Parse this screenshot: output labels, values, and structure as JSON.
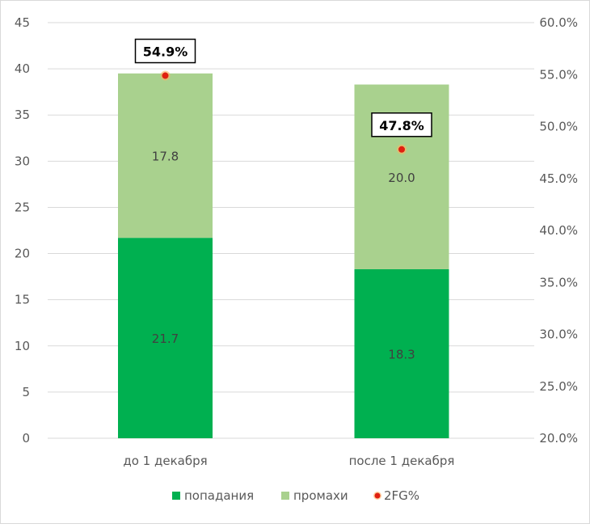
{
  "chart_data": {
    "type": "bar",
    "stacked": true,
    "categories": [
      "до 1 декабря",
      "после 1 декабря"
    ],
    "series": [
      {
        "name": "попадания",
        "values": [
          21.7,
          18.3
        ],
        "color": "#00b050",
        "axis": "left"
      },
      {
        "name": "промахи",
        "values": [
          17.8,
          20.0
        ],
        "color": "#a9d18e",
        "axis": "left"
      },
      {
        "name": "2FG%",
        "type": "scatter",
        "values": [
          54.9,
          47.8
        ],
        "labels": [
          "54.9%",
          "47.8%"
        ],
        "color": "#e02010",
        "axis": "right"
      }
    ],
    "segment_labels": [
      [
        "21.7",
        "17.8"
      ],
      [
        "18.3",
        "20.0"
      ]
    ],
    "ylim": [
      0,
      45
    ],
    "yticks": [
      "0",
      "5",
      "10",
      "15",
      "20",
      "25",
      "30",
      "35",
      "40",
      "45"
    ],
    "y2lim": [
      20,
      60
    ],
    "y2ticks": [
      "20.0%",
      "25.0%",
      "30.0%",
      "35.0%",
      "40.0%",
      "45.0%",
      "50.0%",
      "55.0%",
      "60.0%"
    ],
    "grid": true,
    "legend": "bottom",
    "title": "",
    "xlabel": "",
    "ylabel": ""
  }
}
